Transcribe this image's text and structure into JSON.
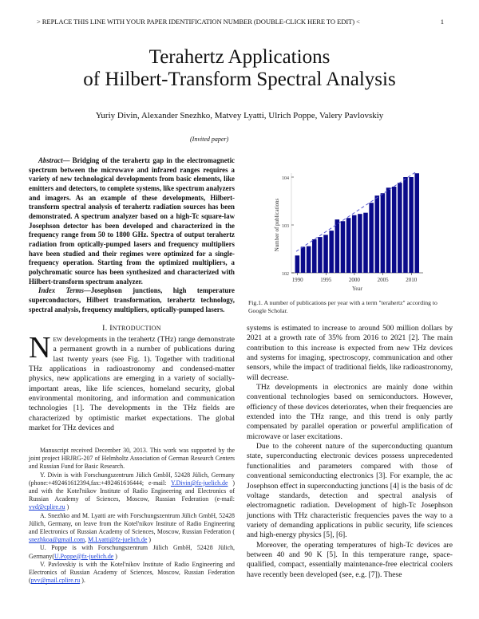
{
  "header": {
    "running_head": "> REPLACE THIS LINE WITH YOUR PAPER IDENTIFICATION NUMBER (DOUBLE-CLICK HERE TO EDIT) <",
    "page_number": "1"
  },
  "title": {
    "line1": "Terahertz Applications",
    "line2": "of Hilbert-Transform Spectral Analysis"
  },
  "authors": "Yuriy Divin, Alexander Snezhko, Matvey Lyatti, Ulrich Poppe,  Valery Pavlovskiy",
  "invited": "(Invited paper)",
  "abstract": {
    "label": "Abstract",
    "text": "— Bridging of the terahertz gap in the electromagnetic spectrum between the microwave and infrared ranges requires a variety of new technological developments from basic elements, like emitters and detectors, to complete systems, like spectrum analyzers and imagers. As an example of these developments, Hilbert-transform spectral analysis of terahertz radiation sources has been demonstrated. A spectrum analyzer based on a high-Tc square-law Josephson detector has been developed and characterized in the frequency range from 50 to 1800 GHz. Spectra of output terahertz radiation from optically-pumped lasers and frequency multipliers have been studied and their regimes were optimized for a single-frequency operation. Starting from the optimized multipliers, a polychromatic source has been synthesized and characterized with Hilbert-transform spectrum analyzer.",
    "index_label": "Index Terms",
    "index_text": "—Josephson junctions, high temperature superconductors, Hilbert transformation, terahertz technology, spectral analysis, frequency multipliers, optically-pumped lasers."
  },
  "section": {
    "number": "I.",
    "title_first": "I",
    "title_rest": "NTRODUCTION"
  },
  "intro": {
    "drop_cap": "N",
    "small_caps": "EW",
    "para1": " developments in the terahertz (THz) range demonstrate a permanent growth in a number of publications during last twenty years (see Fig. 1). Together with traditional THz applications in radioastronomy and condensed-matter physics, new applications are emerging in a variety of socially-important areas, like life sciences, homeland security, global environmental monitoring, and information and communication technologies [1]. The developments in the THz fields are characterized by optimistic market expectations. The global market for THz devices and"
  },
  "right_column": {
    "para1": "systems is estimated to increase to around 500 million dollars by 2021 at a growth rate of 35% from 2016 to 2021 [2]. The main contribution to this increase is expected from new THz devices and systems for imaging, spectroscopy, communication and other sensors, while the impact of traditional fields, like radioastronomy, will decrease.",
    "para2": "THz developments in electronics are mainly done within conventional technologies based on semiconductors. However, efficiency of these devices deteriorates, when their frequencies are extended into the THz range, and this trend is only partly compensated by parallel operation or powerful amplification of microwave or laser excitations.",
    "para3": "Due to the coherent nature of the superconducting quantum state, superconducting electronic devices possess unprecedented functionalities and parameters compared with those of conventional semiconducting electronics [3]. For example, the ac Josephson effect in superconducting junctions [4] is the basis of dc voltage standards, detection and spectral analysis of electromagnetic radiation. Development of high-Tc Josephson junctions with THz characteristic frequencies paves the way to a variety of demanding applications in public security, life sciences and high-energy physics [5], [6].",
    "para4": "Moreover, the operating temperatures of high-Tc devices are between 40 and 90 K [5]. In this temperature range, space-qualified, compact, essentially maintenance-free electrical coolers have recently been developed (see, e.g. [7]). These"
  },
  "footnotes": {
    "f1": "Manuscript received December 30, 2013. This work was supported by the joint project HRJRG-207 of Helmholtz Association of German Research Centers and Russian Fund for Basic Research.",
    "f2_pre": "Y. Divin is with Forschungszentrum Jülich GmbH, 52428 Jülich, Germany (phone:+492461612394,fax:+492461616444; e-mail: ",
    "f2_link": "Y.Divin@fz-juelich.de",
    "f2_mid": " ) and with the Kotel'nikov Institute of Radio Engineering and Electronics of Russian Academy of Sciences, Moscow, Russian Federation (e-mail: ",
    "f2_link2": "yyd@cplire.ru",
    "f2_end": " )",
    "f3_pre": "A. Snezhko and M. Lyatti are with Forschungszentrum Jülich GmbH, 52428 Jülich, Germany, on leave from the Kotel'nikov Institute of Radio Engineering and Electronics of Russian Academy of Sciences, Moscow, Russian Federation ( ",
    "f3_link": "snezhkoa@gmail.com",
    "f3_sep": ", ",
    "f3_link2": "M.Lyatti@fz-juelich.de",
    "f3_end": " )",
    "f4_pre": "U. Poppe is with Forschungszentrum Jülich GmbH, 52428 Jülich, Germany(",
    "f4_link": "U.Poppe@fz-juelich.de",
    "f4_end": " )",
    "f5_pre": "V. Pavlovskiy is with the Kotel'nikov Institute of Radio Engineering and Electronics of Russian Academy of Sciences, Moscow, Russian Federation (",
    "f5_link": "pvv@mail.cplire.ru",
    "f5_end": " ).",
    "trailing_dot": "."
  },
  "figure": {
    "caption": "Fig.1.  A number of publications per year with a term \"terahertz\" according to Google Scholar."
  },
  "chart_data": {
    "type": "bar",
    "title": "",
    "xlabel": "Year",
    "ylabel": "Number of publications",
    "yscale": "log",
    "ylim": [
      100,
      15000
    ],
    "yticks": [
      "10^2",
      "10^3",
      "10^4"
    ],
    "xticks": [
      "1990",
      "1995",
      "2000",
      "2005",
      "2010"
    ],
    "categories": [
      "1990",
      "1991",
      "1992",
      "1993",
      "1994",
      "1995",
      "1996",
      "1997",
      "1998",
      "1999",
      "2000",
      "2001",
      "2002",
      "2003",
      "2004",
      "2005",
      "2006",
      "2007",
      "2008",
      "2009",
      "2010",
      "2011"
    ],
    "values": [
      230,
      350,
      360,
      500,
      560,
      620,
      760,
      1300,
      1200,
      1400,
      1600,
      1700,
      1800,
      2900,
      4100,
      4600,
      6000,
      6300,
      7600,
      10000,
      10000,
      12000
    ],
    "bar_color": "#0a0a8a",
    "trend_line": "dashed exponential fit",
    "grid": false
  }
}
